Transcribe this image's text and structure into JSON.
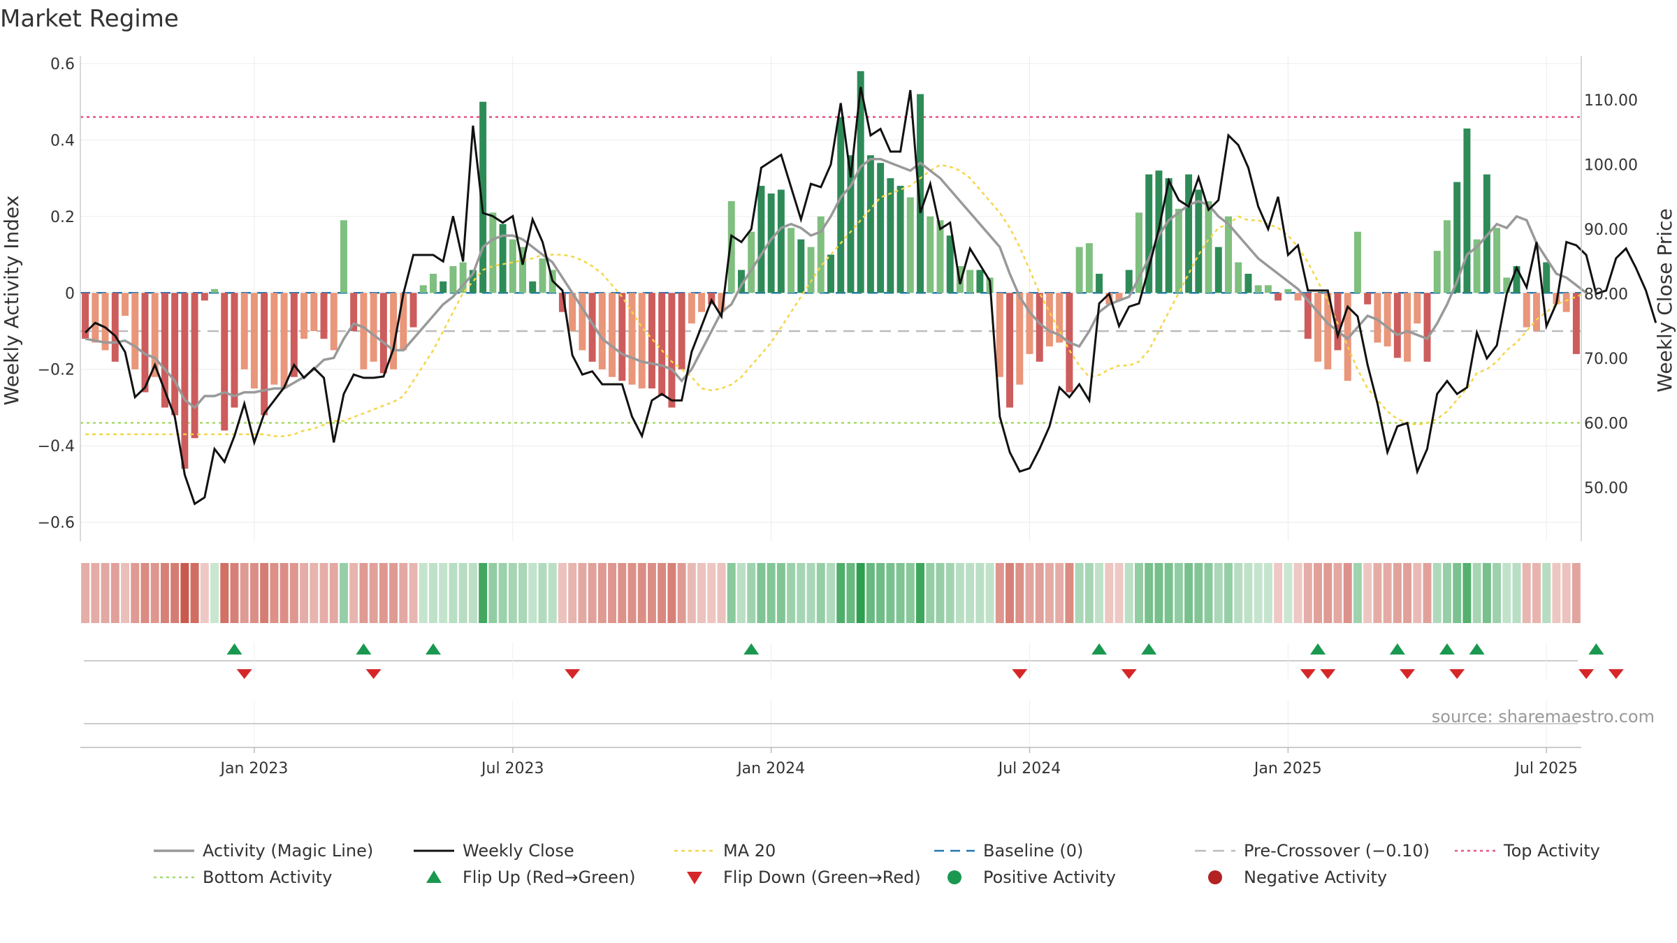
{
  "chart_data": {
    "type": "bar",
    "title": "Market Regime",
    "source": "source: sharemaestro.com",
    "ylabel_left": "Weekly Activity Index",
    "ylabel_right": "Weekly Close Price",
    "ylim_left": [
      -0.65,
      0.62
    ],
    "ylim_right": [
      41.7,
      116.8
    ],
    "left_ticks": [
      {
        "v": 0.6,
        "label": "0.6"
      },
      {
        "v": 0.4,
        "label": "0.4"
      },
      {
        "v": 0.2,
        "label": "0.2"
      },
      {
        "v": 0,
        "label": "0"
      },
      {
        "v": -0.2,
        "label": "−0.2"
      },
      {
        "v": -0.4,
        "label": "−0.4"
      },
      {
        "v": -0.6,
        "label": "−0.6"
      }
    ],
    "right_ticks": [
      {
        "v": 110,
        "label": "110.00"
      },
      {
        "v": 100,
        "label": "100.00"
      },
      {
        "v": 90,
        "label": "90.00"
      },
      {
        "v": 80,
        "label": "80.00"
      },
      {
        "v": 70,
        "label": "70.00"
      },
      {
        "v": 60,
        "label": "60.00"
      },
      {
        "v": 50,
        "label": "50.00"
      }
    ],
    "x_ticks": [
      {
        "week": 17,
        "label": "Jan 2023"
      },
      {
        "week": 43,
        "label": "Jul 2023"
      },
      {
        "week": 69,
        "label": "Jan 2024"
      },
      {
        "week": 95,
        "label": "Jul 2024"
      },
      {
        "week": 121,
        "label": "Jan 2025"
      },
      {
        "week": 147,
        "label": "Jul 2025"
      }
    ],
    "reference_lines": {
      "top_activity": 0.46,
      "bottom_activity": -0.34,
      "pre_crossover": -0.1,
      "baseline": 0
    },
    "activity": [
      -0.12,
      -0.13,
      -0.15,
      -0.18,
      -0.06,
      -0.2,
      -0.26,
      -0.22,
      -0.3,
      -0.32,
      -0.46,
      -0.38,
      -0.02,
      0.01,
      -0.36,
      -0.3,
      -0.2,
      -0.25,
      -0.32,
      -0.24,
      -0.25,
      -0.22,
      -0.12,
      -0.1,
      -0.12,
      -0.15,
      0.19,
      -0.1,
      -0.2,
      -0.18,
      -0.21,
      -0.2,
      -0.15,
      -0.09,
      0.02,
      0.05,
      0.03,
      0.07,
      0.08,
      0.06,
      0.5,
      0.21,
      0.18,
      0.14,
      0.12,
      0.03,
      0.09,
      0.06,
      -0.05,
      -0.1,
      -0.15,
      -0.18,
      -0.2,
      -0.22,
      -0.23,
      -0.24,
      -0.25,
      -0.25,
      -0.27,
      -0.3,
      -0.2,
      -0.08,
      -0.05,
      -0.03,
      -0.05,
      0.24,
      0.06,
      0.16,
      0.28,
      0.26,
      0.27,
      0.17,
      0.14,
      0.12,
      0.2,
      0.1,
      0.46,
      0.36,
      0.58,
      0.36,
      0.34,
      0.3,
      0.28,
      0.25,
      0.52,
      0.2,
      0.19,
      0.15,
      0.07,
      0.06,
      0.06,
      0.04,
      -0.22,
      -0.3,
      -0.24,
      -0.16,
      -0.18,
      -0.14,
      -0.13,
      -0.26,
      0.12,
      0.13,
      0.05,
      -0.03,
      -0.02,
      0.06,
      0.21,
      0.31,
      0.32,
      0.3,
      0.22,
      0.31,
      0.27,
      0.24,
      0.12,
      0.2,
      0.08,
      0.05,
      0.02,
      0.02,
      -0.02,
      0.01,
      -0.02,
      -0.12,
      -0.18,
      -0.2,
      -0.15,
      -0.23,
      0.16,
      -0.03,
      -0.13,
      -0.14,
      -0.17,
      -0.18,
      -0.08,
      -0.18,
      0.11,
      0.19,
      0.29,
      0.43,
      0.14,
      0.31,
      0.17,
      0.04,
      0.07,
      -0.09,
      -0.1,
      0.08,
      -0.03,
      -0.05,
      -0.16
    ],
    "weekly_close": [
      74,
      75.5,
      74.8,
      73.5,
      71,
      64,
      65.5,
      69,
      65,
      61,
      52,
      47.5,
      48.5,
      56,
      54,
      58,
      63,
      57,
      61.5,
      63.5,
      65.5,
      69,
      67,
      68.5,
      67,
      57,
      64.5,
      67.5,
      67,
      67,
      67.2,
      71.5,
      80,
      86,
      86,
      86,
      85,
      92,
      85,
      106,
      92.5,
      92,
      91,
      92,
      84.5,
      91.5,
      88,
      82,
      80.5,
      70.5,
      67.5,
      68,
      66,
      66,
      66,
      61,
      58,
      63.5,
      64.5,
      63.5,
      63.5,
      71,
      75,
      79,
      76.5,
      89,
      88,
      90,
      99.5,
      100.5,
      101.5,
      96.5,
      91.5,
      97,
      96.5,
      100,
      109.5,
      98,
      112,
      104.5,
      105.5,
      102,
      102,
      111.5,
      92.5,
      97,
      90,
      91,
      81.5,
      87,
      84.5,
      82,
      61,
      55.5,
      52.5,
      53,
      56,
      59.5,
      65.5,
      64,
      66,
      63.5,
      78.5,
      80,
      75,
      78,
      78.5,
      84,
      90,
      97.5,
      94.5,
      93.5,
      98,
      93,
      94.5,
      104.5,
      103,
      99.5,
      93.5,
      90,
      95,
      86,
      87.5,
      80.5,
      80.5,
      80.5,
      73.5,
      78,
      76.5,
      69,
      63,
      55.5,
      59.5,
      60,
      52.5,
      56,
      64.5,
      66.5,
      64.5,
      65.5,
      74,
      70,
      72,
      80,
      84,
      81,
      88,
      75,
      78.5,
      88,
      87.5,
      86,
      80,
      80.5,
      85.5,
      87,
      84,
      80.5,
      75.5
    ],
    "magic_line": [
      -0.12,
      -0.125,
      -0.13,
      -0.13,
      -0.125,
      -0.14,
      -0.16,
      -0.17,
      -0.2,
      -0.23,
      -0.28,
      -0.3,
      -0.27,
      -0.27,
      -0.26,
      -0.27,
      -0.26,
      -0.26,
      -0.255,
      -0.25,
      -0.25,
      -0.235,
      -0.22,
      -0.2,
      -0.175,
      -0.17,
      -0.12,
      -0.08,
      -0.09,
      -0.11,
      -0.13,
      -0.15,
      -0.15,
      -0.12,
      -0.09,
      -0.06,
      -0.03,
      -0.01,
      0.02,
      0.05,
      0.12,
      0.14,
      0.15,
      0.15,
      0.14,
      0.12,
      0.1,
      0.08,
      0.04,
      0,
      -0.04,
      -0.08,
      -0.12,
      -0.14,
      -0.16,
      -0.17,
      -0.18,
      -0.185,
      -0.19,
      -0.2,
      -0.23,
      -0.2,
      -0.15,
      -0.1,
      -0.05,
      -0.03,
      0.02,
      0.06,
      0.1,
      0.14,
      0.17,
      0.18,
      0.17,
      0.15,
      0.16,
      0.2,
      0.25,
      0.28,
      0.33,
      0.35,
      0.35,
      0.34,
      0.33,
      0.32,
      0.34,
      0.32,
      0.3,
      0.27,
      0.24,
      0.21,
      0.18,
      0.15,
      0.12,
      0.05,
      -0.01,
      -0.05,
      -0.08,
      -0.1,
      -0.11,
      -0.13,
      -0.14,
      -0.1,
      -0.05,
      -0.03,
      -0.02,
      -0.01,
      0.04,
      0.09,
      0.15,
      0.19,
      0.21,
      0.23,
      0.24,
      0.23,
      0.2,
      0.18,
      0.15,
      0.12,
      0.09,
      0.07,
      0.05,
      0.03,
      0.01,
      -0.02,
      -0.05,
      -0.08,
      -0.1,
      -0.12,
      -0.09,
      -0.06,
      -0.07,
      -0.09,
      -0.11,
      -0.1,
      -0.11,
      -0.12,
      -0.08,
      -0.03,
      0.03,
      0.1,
      0.12,
      0.15,
      0.18,
      0.17,
      0.2,
      0.19,
      0.13,
      0.09,
      0.05,
      0.04,
      0.02,
      0
    ],
    "ma20": [
      -0.37,
      -0.37,
      -0.37,
      -0.37,
      -0.37,
      -0.37,
      -0.37,
      -0.37,
      -0.37,
      -0.37,
      -0.37,
      -0.37,
      -0.37,
      -0.37,
      -0.37,
      -0.37,
      -0.37,
      -0.37,
      -0.37,
      -0.375,
      -0.375,
      -0.37,
      -0.36,
      -0.355,
      -0.345,
      -0.335,
      -0.335,
      -0.325,
      -0.315,
      -0.305,
      -0.295,
      -0.285,
      -0.27,
      -0.23,
      -0.19,
      -0.15,
      -0.1,
      -0.05,
      0,
      0.03,
      0.06,
      0.07,
      0.075,
      0.08,
      0.085,
      0.09,
      0.1,
      0.1,
      0.1,
      0.095,
      0.085,
      0.07,
      0.05,
      0.02,
      -0.01,
      -0.05,
      -0.09,
      -0.12,
      -0.15,
      -0.18,
      -0.2,
      -0.22,
      -0.25,
      -0.255,
      -0.25,
      -0.24,
      -0.22,
      -0.19,
      -0.16,
      -0.13,
      -0.09,
      -0.05,
      -0.01,
      0.03,
      0.07,
      0.1,
      0.13,
      0.16,
      0.19,
      0.22,
      0.25,
      0.26,
      0.27,
      0.28,
      0.3,
      0.32,
      0.335,
      0.33,
      0.32,
      0.3,
      0.27,
      0.24,
      0.21,
      0.17,
      0.12,
      0.06,
      0,
      -0.05,
      -0.1,
      -0.15,
      -0.19,
      -0.22,
      -0.215,
      -0.2,
      -0.19,
      -0.19,
      -0.18,
      -0.15,
      -0.1,
      -0.05,
      0,
      0.05,
      0.1,
      0.14,
      0.17,
      0.18,
      0.2,
      0.19,
      0.19,
      0.18,
      0.17,
      0.15,
      0.12,
      0.08,
      0.03,
      -0.02,
      -0.08,
      -0.14,
      -0.2,
      -0.25,
      -0.28,
      -0.31,
      -0.33,
      -0.34,
      -0.345,
      -0.34,
      -0.33,
      -0.31,
      -0.28,
      -0.25,
      -0.21,
      -0.2,
      -0.18,
      -0.15,
      -0.13,
      -0.1,
      -0.07,
      -0.05,
      -0.03,
      -0.02,
      -0.01,
      0
    ],
    "flip_up_weeks": [
      15,
      28,
      35,
      67,
      102,
      107,
      124,
      132,
      137,
      140,
      152
    ],
    "flip_down_weeks": [
      16,
      29,
      49,
      94,
      105,
      123,
      125,
      133,
      138,
      151,
      154
    ],
    "legend": [
      {
        "label": "Activity (Magic Line)",
        "key": "magic"
      },
      {
        "label": "Weekly Close",
        "key": "close"
      },
      {
        "label": "MA 20",
        "key": "ma"
      },
      {
        "label": "Baseline (0)",
        "key": "baseline"
      },
      {
        "label": "Pre-Crossover (−0.10)",
        "key": "pre"
      },
      {
        "label": "Top Activity",
        "key": "top"
      },
      {
        "label": "Bottom Activity",
        "key": "bottom"
      },
      {
        "label": "Flip Up (Red→Green)",
        "key": "flipup"
      },
      {
        "label": "Flip Down (Green→Red)",
        "key": "flipdown"
      },
      {
        "label": "Positive Activity",
        "key": "pos"
      },
      {
        "label": "Negative Activity",
        "key": "neg"
      }
    ],
    "colors": {
      "pos_strong": "#2e8b57",
      "pos_light": "#7fbf7f",
      "neg_strong": "#cd5c5c",
      "neg_light": "#e9967a",
      "close": "#111111",
      "magic": "#999999",
      "ma20": "#f5d547",
      "baseline": "#1f77b4",
      "pre": "#bbbbbb",
      "top": "#e75480",
      "bottom": "#a6d96a",
      "flip_up": "#1a9850",
      "flip_down": "#d62728",
      "pos_dot": "#1a9850",
      "neg_dot": "#b22222"
    }
  }
}
